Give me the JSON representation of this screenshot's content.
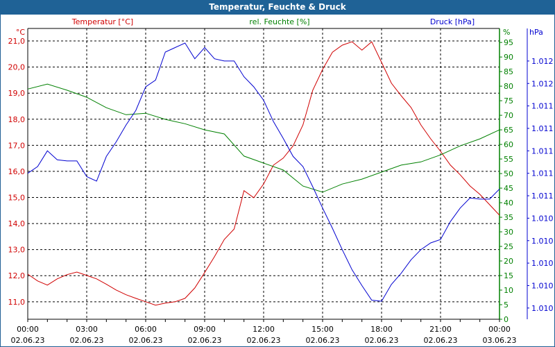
{
  "title": "Temperatur, Feuchte & Druck",
  "colors": {
    "temperature": "#d00000",
    "humidity": "#008000",
    "pressure": "#0000d0",
    "titlebar": "#1f6296"
  },
  "chart_data": {
    "type": "line",
    "title": "Temperatur, Feuchte & Druck",
    "x_ticks": [
      {
        "time": "00:00",
        "date": "02.06.23"
      },
      {
        "time": "03:00",
        "date": "02.06.23"
      },
      {
        "time": "06:00",
        "date": "02.06.23"
      },
      {
        "time": "09:00",
        "date": "02.06.23"
      },
      {
        "time": "12:00",
        "date": "02.06.23"
      },
      {
        "time": "15:00",
        "date": "02.06.23"
      },
      {
        "time": "18:00",
        "date": "02.06.23"
      },
      {
        "time": "21:00",
        "date": "02.06.23"
      },
      {
        "time": "00:00",
        "date": "03.06.23"
      }
    ],
    "xlim_hours": [
      0,
      24
    ],
    "grid": true,
    "axes": {
      "temperature": {
        "label": "Temperatur [°C]",
        "unit": "°C",
        "ticks": [
          11,
          12,
          13,
          14,
          15,
          16,
          17,
          18,
          19,
          20,
          21
        ],
        "tick_labels": [
          "11,0",
          "12,0",
          "13,0",
          "14,0",
          "15,0",
          "16,0",
          "17,0",
          "18,0",
          "19,0",
          "20,0",
          "21,0"
        ],
        "ylim": [
          10.33,
          21.48
        ]
      },
      "humidity": {
        "label": "rel. Feuchte [%]",
        "unit": "%",
        "ticks": [
          0,
          5,
          10,
          15,
          20,
          25,
          30,
          35,
          40,
          45,
          50,
          55,
          60,
          65,
          70,
          75,
          80,
          85,
          90,
          95
        ],
        "tick_labels": [
          "0",
          "5",
          "10",
          "15",
          "20",
          "25",
          "30",
          "35",
          "40",
          "45",
          "50",
          "55",
          "60",
          "65",
          "70",
          "75",
          "80",
          "85",
          "90",
          "95"
        ],
        "ylim": [
          0,
          99.8
        ]
      },
      "pressure": {
        "label": "Druck [hPa]",
        "unit": "hPa",
        "ticks": [
          1011.85,
          1011.65,
          1011.45,
          1011.25,
          1011.05,
          1010.85,
          1010.65,
          1010.45,
          1010.25,
          1010.05,
          1009.85,
          1009.65
        ],
        "tick_labels": [
          "1.012",
          "1.012",
          "1.011",
          "1.011",
          "1.011",
          "1.011",
          "1.011",
          "1.010",
          "1.010",
          "1.010",
          "1.010",
          "1.010"
        ],
        "ylim": [
          1009.55,
          1012.14
        ]
      }
    },
    "series": [
      {
        "name": "Temperatur [°C]",
        "axis": "temperature",
        "step_hours": 0.5,
        "values": [
          12.06,
          11.8,
          11.64,
          11.88,
          12.04,
          12.14,
          12.01,
          11.88,
          11.67,
          11.45,
          11.27,
          11.13,
          11.0,
          10.87,
          10.95,
          11.0,
          11.13,
          11.53,
          12.12,
          12.73,
          13.39,
          13.79,
          15.26,
          14.99,
          15.52,
          16.24,
          16.51,
          16.98,
          17.78,
          19.11,
          19.91,
          20.57,
          20.84,
          20.97,
          20.65,
          20.97,
          20.18,
          19.38,
          18.9,
          18.45,
          17.78,
          17.25,
          16.77,
          16.24,
          15.87,
          15.44,
          15.12,
          14.72,
          14.32
        ]
      },
      {
        "name": "rel. Feuchte [%]",
        "axis": "humidity",
        "step_hours": 1,
        "values": [
          79.0,
          80.7,
          78.6,
          76.2,
          72.6,
          70.2,
          70.7,
          68.6,
          67.1,
          65.0,
          63.6,
          56.0,
          53.6,
          51.2,
          45.7,
          43.6,
          46.4,
          48.1,
          50.5,
          52.9,
          54.0,
          56.4,
          59.5,
          61.9,
          65.0
        ]
      },
      {
        "name": "Druck [hPa]",
        "axis": "pressure",
        "step_hours": 0.5,
        "values": [
          1010.85,
          1010.91,
          1011.05,
          1010.97,
          1010.96,
          1010.96,
          1010.82,
          1010.78,
          1011.0,
          1011.13,
          1011.28,
          1011.41,
          1011.62,
          1011.68,
          1011.93,
          1011.97,
          1012.01,
          1011.87,
          1011.97,
          1011.87,
          1011.85,
          1011.85,
          1011.71,
          1011.62,
          1011.5,
          1011.31,
          1011.16,
          1011.0,
          1010.91,
          1010.73,
          1010.54,
          1010.36,
          1010.17,
          1009.99,
          1009.85,
          1009.72,
          1009.71,
          1009.86,
          1009.96,
          1010.08,
          1010.17,
          1010.23,
          1010.26,
          1010.42,
          1010.54,
          1010.63,
          1010.62,
          1010.62,
          1010.71
        ]
      }
    ]
  }
}
